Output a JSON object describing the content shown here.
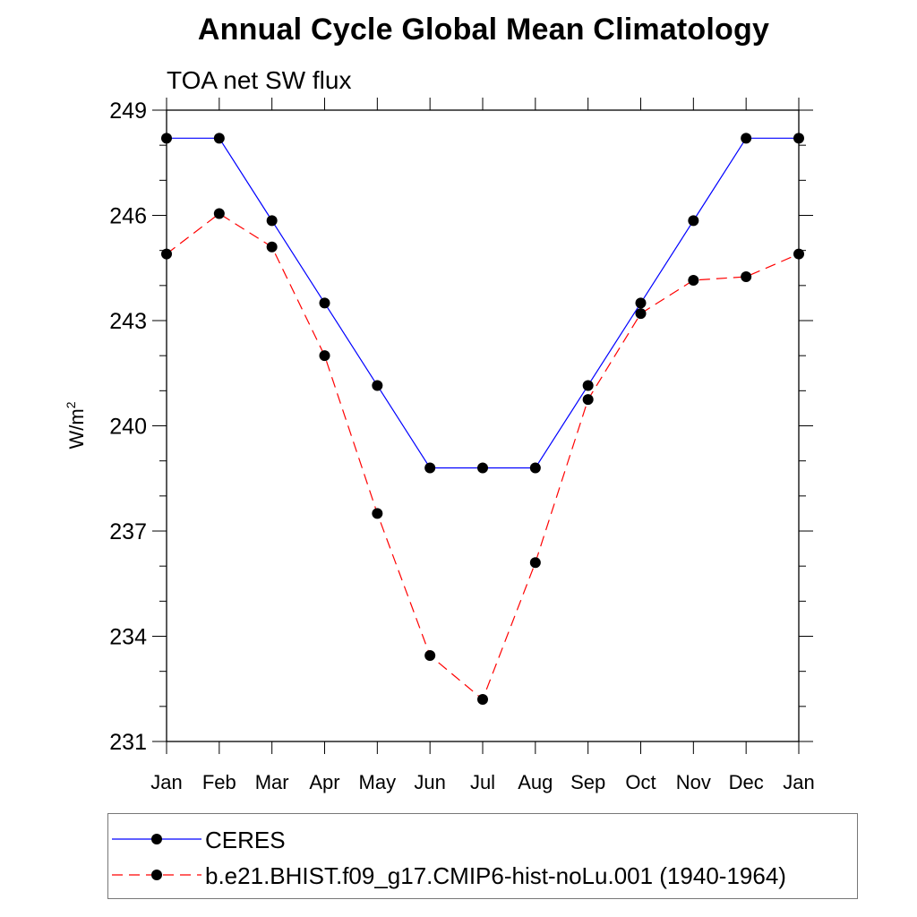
{
  "chart_data": {
    "type": "line",
    "title": "Annual Cycle Global Mean Climatology",
    "subtitle": "TOA net SW flux",
    "ylabel_base": "W/m",
    "ylabel_sup": "2",
    "xlabel": "",
    "categories": [
      "Jan",
      "Feb",
      "Mar",
      "Apr",
      "May",
      "Jun",
      "Jul",
      "Aug",
      "Sep",
      "Oct",
      "Nov",
      "Dec",
      "Jan"
    ],
    "ylim": [
      231,
      249
    ],
    "yticks": [
      231,
      234,
      237,
      240,
      243,
      246,
      249
    ],
    "series": [
      {
        "name": "CERES",
        "color": "#0000ff",
        "dash": "solid",
        "values": [
          248.2,
          248.2,
          245.85,
          243.5,
          241.15,
          238.8,
          238.8,
          238.8,
          241.15,
          243.5,
          245.85,
          248.2,
          248.2
        ]
      },
      {
        "name": "b.e21.BHIST.f09_g17.CMIP6-hist-noLu.001 (1940-1964)",
        "color": "#ff0000",
        "dash": "dashed",
        "values": [
          244.9,
          246.05,
          245.1,
          242.0,
          237.5,
          233.45,
          232.2,
          236.1,
          240.75,
          243.2,
          244.15,
          244.25,
          244.9
        ]
      }
    ]
  }
}
